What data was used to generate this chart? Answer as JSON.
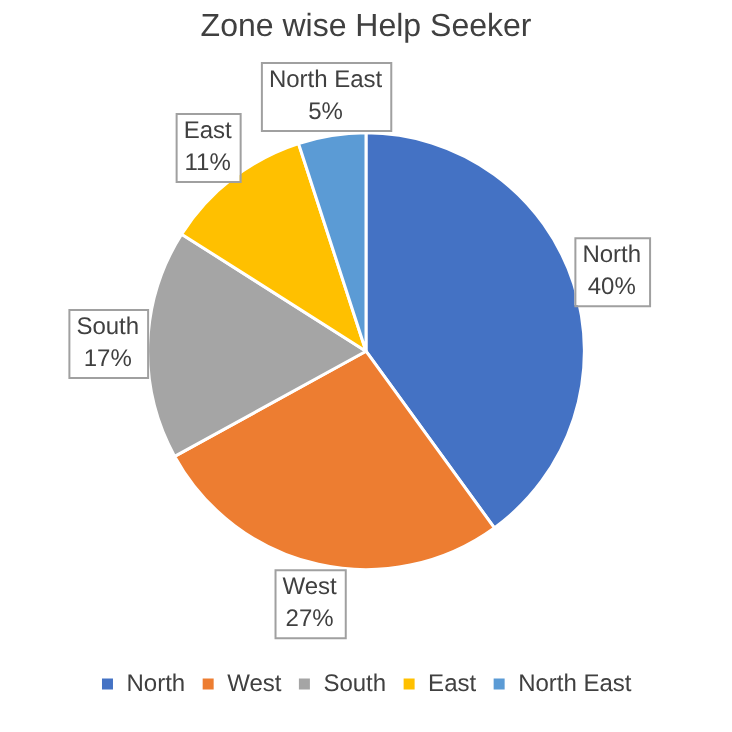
{
  "chart_data": {
    "type": "pie",
    "title": "Zone wise Help Seeker",
    "categories": [
      "North",
      "West",
      "South",
      "East",
      "North East"
    ],
    "values": [
      40,
      27,
      17,
      11,
      5
    ],
    "value_labels": [
      "40%",
      "27%",
      "17%",
      "11%",
      "5%"
    ],
    "colors": [
      "#4472c4",
      "#ed7d31",
      "#a5a5a5",
      "#ffc000",
      "#5b9bd5"
    ],
    "legend": "bottom"
  }
}
